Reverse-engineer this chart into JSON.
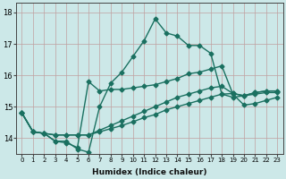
{
  "xlabel": "Humidex (Indice chaleur)",
  "xlim": [
    -0.5,
    23.5
  ],
  "ylim": [
    13.5,
    18.3
  ],
  "yticks": [
    14,
    15,
    16,
    17,
    18
  ],
  "xticks": [
    0,
    1,
    2,
    3,
    4,
    5,
    6,
    7,
    8,
    9,
    10,
    11,
    12,
    13,
    14,
    15,
    16,
    17,
    18,
    19,
    20,
    21,
    22,
    23
  ],
  "bg_color": "#cce8e8",
  "grid_color": "#c0a0a0",
  "line_color": "#1a7060",
  "marker": "D",
  "marker_size": 2.5,
  "linewidth": 1.0,
  "series_spiky": {
    "x": [
      0,
      1,
      2,
      3,
      4,
      5,
      6,
      7,
      8,
      9,
      10,
      11,
      12,
      13,
      14,
      15,
      16,
      17,
      18,
      19,
      20,
      21,
      22,
      23
    ],
    "y": [
      14.8,
      14.2,
      14.15,
      13.9,
      13.9,
      13.65,
      13.55,
      15.0,
      15.75,
      16.1,
      16.6,
      17.1,
      17.8,
      17.35,
      17.25,
      16.95,
      16.95,
      16.7,
      15.4,
      15.3,
      15.35,
      15.4,
      15.45,
      15.45
    ]
  },
  "series_wavy": {
    "x": [
      0,
      1,
      2,
      3,
      4,
      5,
      6,
      7,
      8,
      9,
      10,
      11,
      12,
      13,
      14,
      15,
      16,
      17,
      18,
      19,
      20,
      21,
      22,
      23
    ],
    "y": [
      14.8,
      14.2,
      14.15,
      13.9,
      13.85,
      13.7,
      15.8,
      15.5,
      15.55,
      15.55,
      15.6,
      15.65,
      15.7,
      15.8,
      15.9,
      16.05,
      16.1,
      16.2,
      16.3,
      15.4,
      15.05,
      15.1,
      15.2,
      15.3
    ]
  },
  "series_smooth1": {
    "x": [
      0,
      1,
      2,
      3,
      4,
      5,
      6,
      7,
      8,
      9,
      10,
      11,
      12,
      13,
      14,
      15,
      16,
      17,
      18,
      19,
      20,
      21,
      22,
      23
    ],
    "y": [
      14.8,
      14.2,
      14.15,
      14.1,
      14.1,
      14.1,
      14.1,
      14.2,
      14.3,
      14.4,
      14.52,
      14.65,
      14.75,
      14.9,
      15.0,
      15.1,
      15.2,
      15.3,
      15.4,
      15.42,
      15.35,
      15.45,
      15.5,
      15.5
    ]
  },
  "series_smooth2": {
    "x": [
      0,
      1,
      2,
      3,
      4,
      5,
      6,
      7,
      8,
      9,
      10,
      11,
      12,
      13,
      14,
      15,
      16,
      17,
      18,
      19,
      20,
      21,
      22,
      23
    ],
    "y": [
      14.8,
      14.2,
      14.15,
      14.1,
      14.1,
      14.1,
      14.1,
      14.25,
      14.4,
      14.55,
      14.7,
      14.85,
      15.0,
      15.15,
      15.3,
      15.4,
      15.5,
      15.6,
      15.65,
      15.42,
      15.35,
      15.45,
      15.5,
      15.5
    ]
  }
}
